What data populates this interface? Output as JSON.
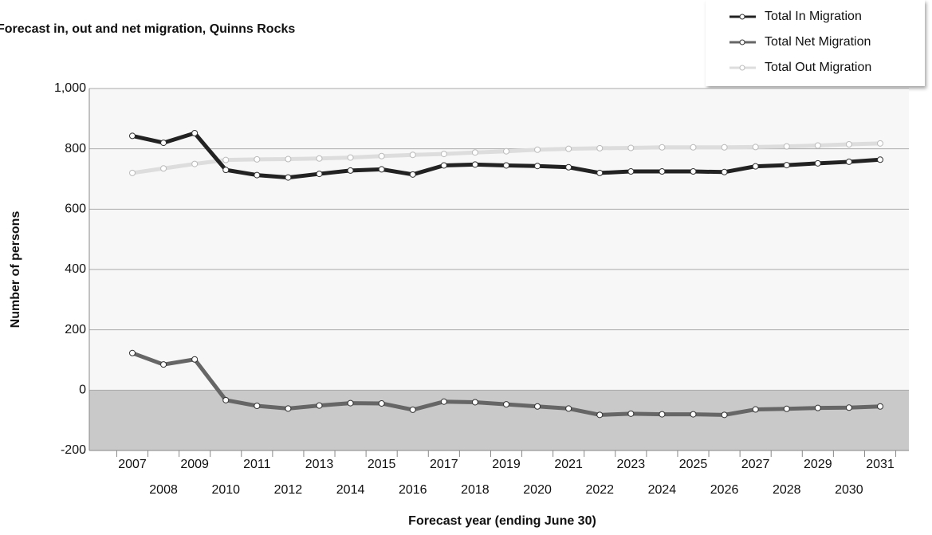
{
  "chart_data": {
    "type": "line",
    "title": "Forecast in, out and net migration, Quinns Rocks",
    "x_label": "Forecast year (ending June 30)",
    "y_label": "Number of persons",
    "categories": [
      "2007",
      "2008",
      "2009",
      "2010",
      "2011",
      "2012",
      "2013",
      "2014",
      "2015",
      "2016",
      "2017",
      "2018",
      "2019",
      "2020",
      "2021",
      "2022",
      "2023",
      "2024",
      "2025",
      "2026",
      "2027",
      "2028",
      "2029",
      "2030",
      "2031"
    ],
    "series": [
      {
        "name": "Total In Migration",
        "color": "#222222",
        "values": [
          843,
          820,
          852,
          730,
          713,
          705,
          717,
          728,
          732,
          715,
          745,
          748,
          745,
          743,
          739,
          720,
          725,
          725,
          725,
          723,
          742,
          746,
          752,
          757,
          764
        ]
      },
      {
        "name": "Total Net Migration",
        "color": "#666666",
        "values": [
          123,
          85,
          102,
          -33,
          -52,
          -61,
          -51,
          -43,
          -44,
          -65,
          -38,
          -40,
          -47,
          -54,
          -61,
          -82,
          -78,
          -80,
          -80,
          -82,
          -64,
          -62,
          -59,
          -58,
          -54
        ]
      },
      {
        "name": "Total Out Migration",
        "color": "#dddddd",
        "values": [
          720,
          735,
          750,
          763,
          765,
          766,
          768,
          771,
          776,
          780,
          783,
          788,
          792,
          797,
          800,
          802,
          803,
          805,
          805,
          805,
          806,
          808,
          811,
          815,
          818
        ]
      }
    ],
    "ylim": [
      -200,
      1000
    ],
    "yticks": [
      {
        "value": -200,
        "label": "-200"
      },
      0,
      200,
      400,
      600,
      800,
      {
        "value": 1000,
        "label": "1,000"
      }
    ],
    "grid": true,
    "legend": "top-right"
  }
}
